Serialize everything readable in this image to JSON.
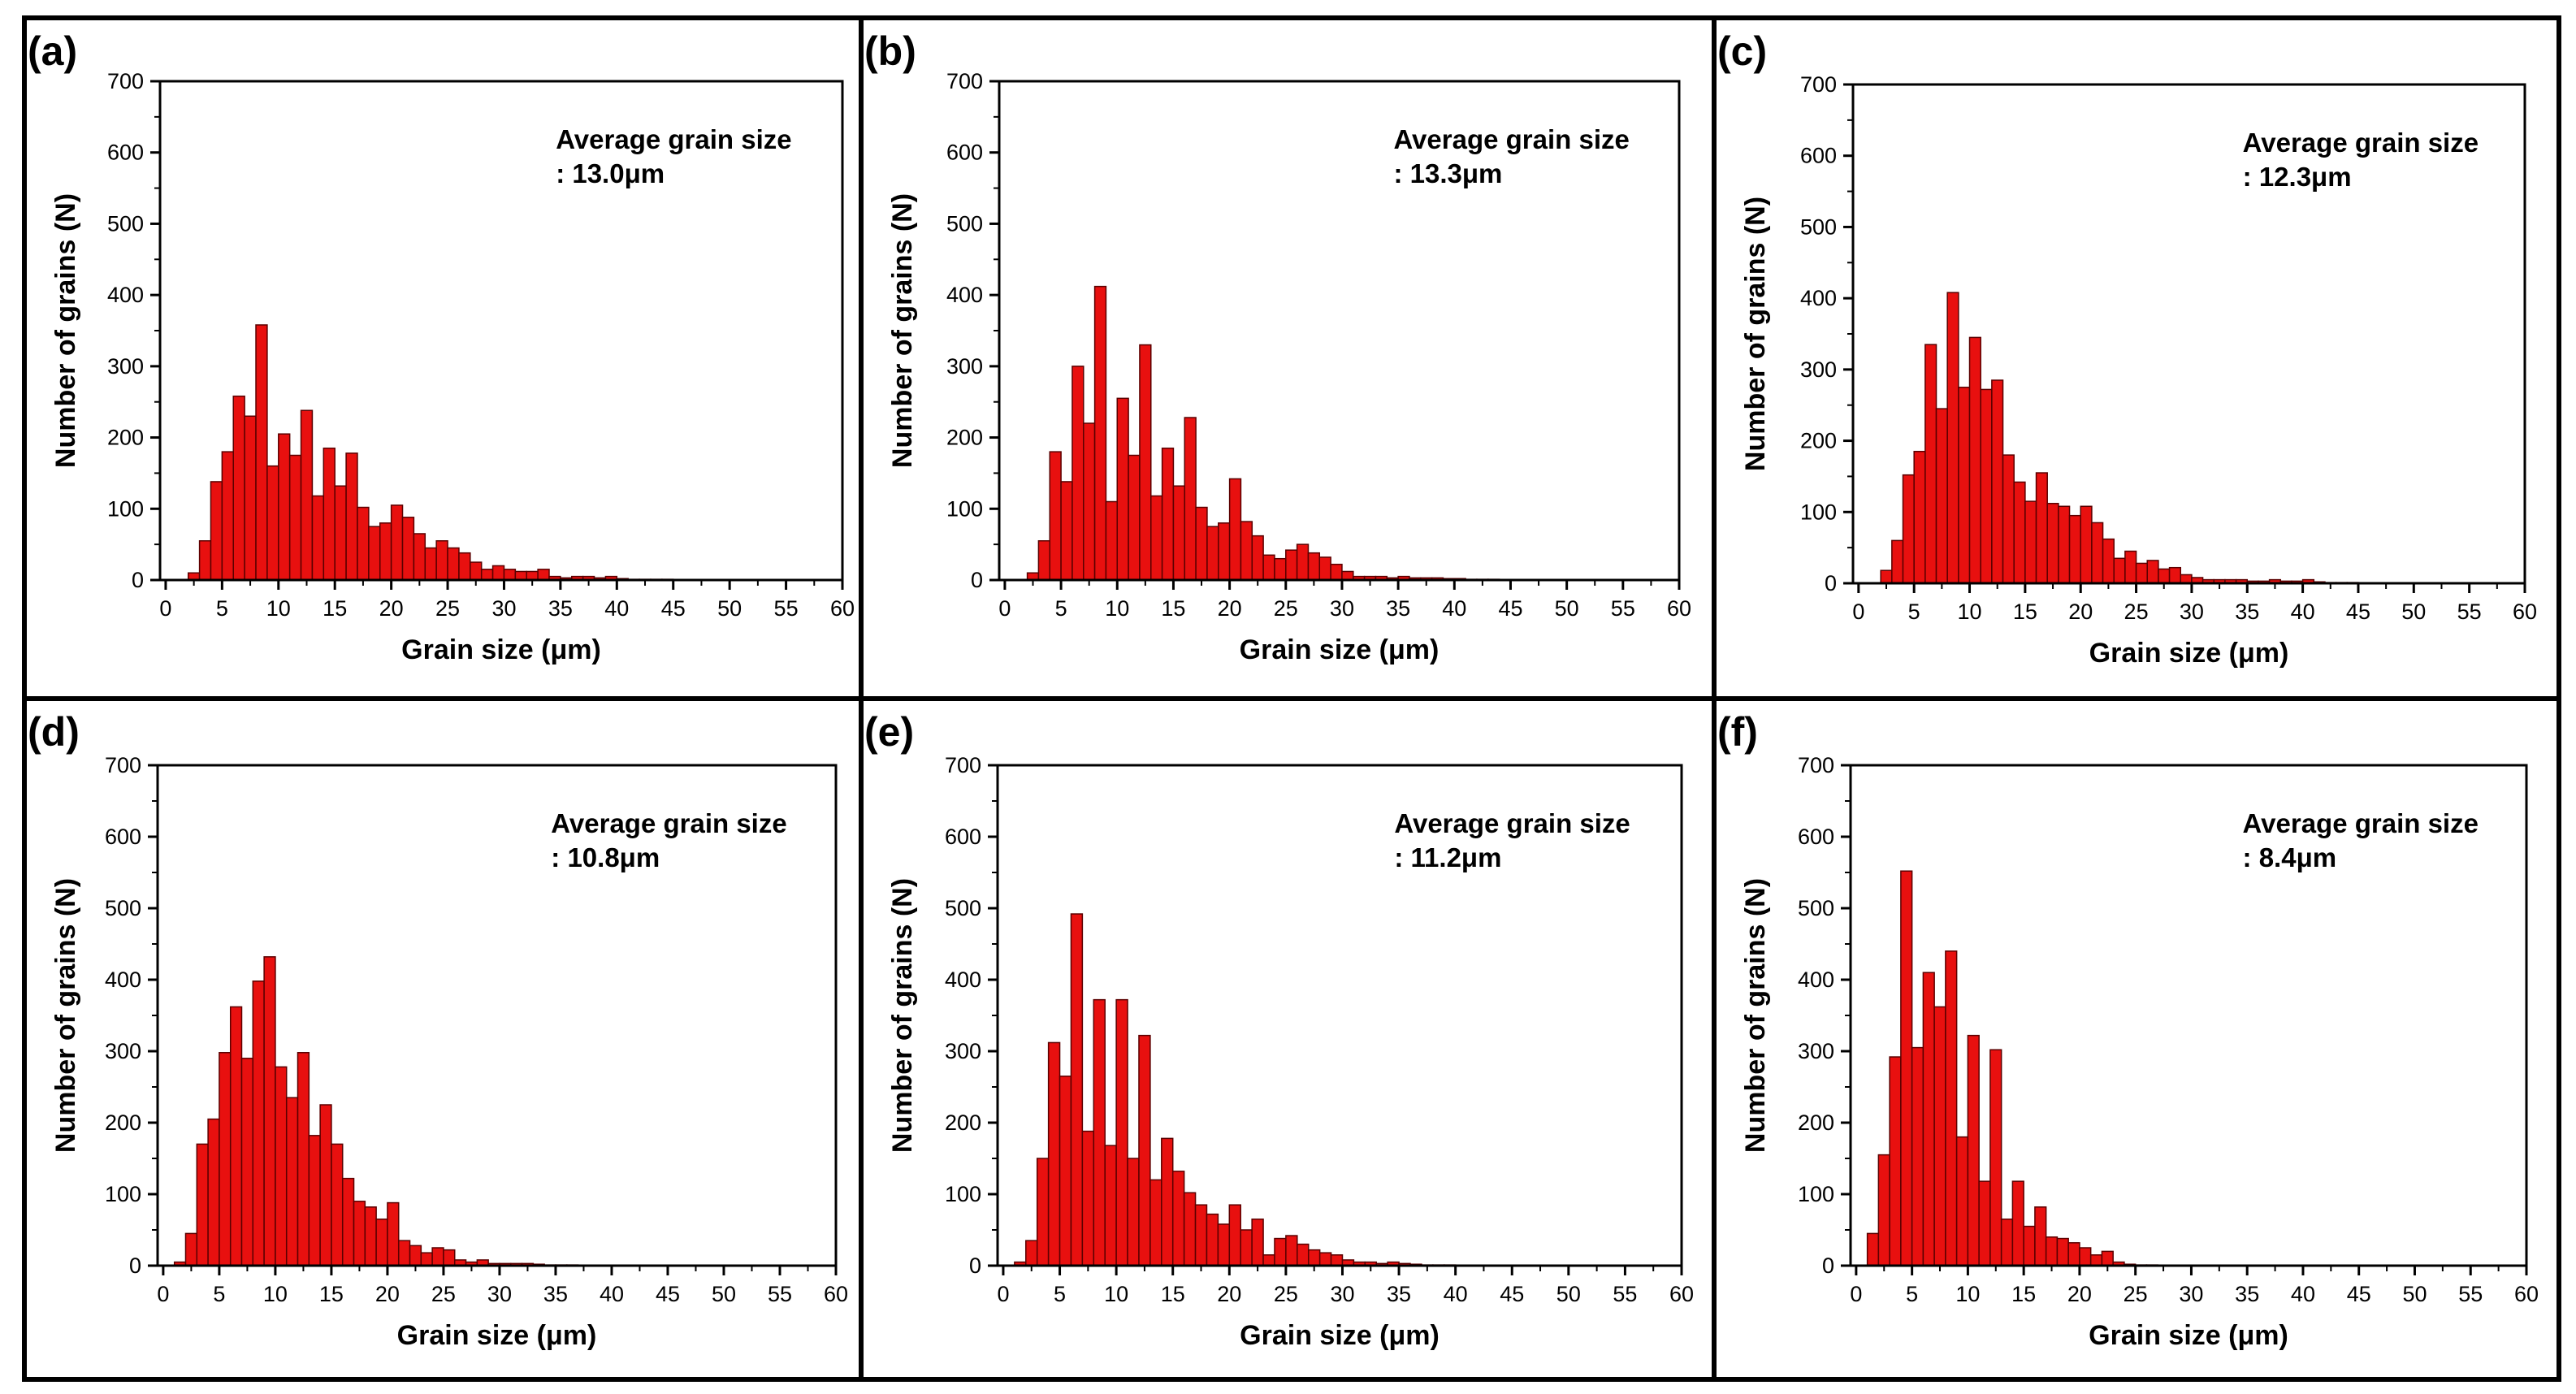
{
  "colors": {
    "bar_fill": "#e8100f",
    "bar_stroke": "#5a0000",
    "axis": "#000000",
    "frame": "#000000"
  },
  "chart_data": [
    {
      "type": "bar",
      "label": "(a)",
      "xlabel": "Grain size (μm)",
      "ylabel": "Number of grains (N)",
      "xlim": [
        -0.5,
        60
      ],
      "ylim": [
        0,
        700
      ],
      "xticks": [
        0,
        5,
        10,
        15,
        20,
        25,
        30,
        35,
        40,
        45,
        50,
        55,
        60
      ],
      "yticks": [
        0,
        100,
        200,
        300,
        400,
        500,
        600,
        700
      ],
      "annotation": [
        "Average grain size",
        ": 13.0μm"
      ],
      "bin_start": 2,
      "bin_width": 1,
      "values": [
        10,
        55,
        138,
        180,
        258,
        230,
        358,
        160,
        205,
        175,
        238,
        118,
        185,
        132,
        178,
        102,
        75,
        80,
        105,
        88,
        65,
        45,
        55,
        45,
        38,
        25,
        15,
        20,
        15,
        12,
        12,
        15,
        5,
        3,
        5,
        5,
        3,
        5,
        2,
        1,
        1,
        1,
        1,
        0,
        0,
        0,
        0,
        0,
        0,
        0,
        0,
        0,
        0,
        0,
        0,
        0,
        0,
        0
      ]
    },
    {
      "type": "bar",
      "label": "(b)",
      "xlabel": "Grain size (μm)",
      "ylabel": "Number of grains (N)",
      "xlim": [
        -0.5,
        60
      ],
      "ylim": [
        0,
        700
      ],
      "xticks": [
        0,
        5,
        10,
        15,
        20,
        25,
        30,
        35,
        40,
        45,
        50,
        55,
        60
      ],
      "yticks": [
        0,
        100,
        200,
        300,
        400,
        500,
        600,
        700
      ],
      "annotation": [
        "Average grain size",
        ": 13.3μm"
      ],
      "bin_start": 2,
      "bin_width": 1,
      "values": [
        10,
        55,
        180,
        138,
        300,
        220,
        412,
        110,
        255,
        175,
        330,
        118,
        185,
        132,
        228,
        102,
        75,
        80,
        142,
        82,
        62,
        35,
        30,
        42,
        50,
        38,
        32,
        22,
        12,
        5,
        5,
        5,
        3,
        5,
        3,
        3,
        3,
        2,
        2,
        1,
        1,
        1,
        0,
        0,
        0,
        0,
        0,
        0,
        0,
        0,
        0,
        0,
        0,
        0,
        0,
        0,
        0,
        0
      ]
    },
    {
      "type": "bar",
      "label": "(c)",
      "xlabel": "Grain size (μm)",
      "ylabel": "Number of grains (N)",
      "xlim": [
        -0.5,
        60
      ],
      "ylim": [
        0,
        700
      ],
      "xticks": [
        0,
        5,
        10,
        15,
        20,
        25,
        30,
        35,
        40,
        45,
        50,
        55,
        60
      ],
      "yticks": [
        0,
        100,
        200,
        300,
        400,
        500,
        600,
        700
      ],
      "annotation": [
        "Average grain size",
        ": 12.3μm"
      ],
      "bin_start": 2,
      "bin_width": 1,
      "values": [
        18,
        60,
        152,
        185,
        335,
        245,
        408,
        275,
        345,
        272,
        285,
        180,
        142,
        115,
        155,
        112,
        108,
        95,
        108,
        85,
        62,
        35,
        45,
        28,
        32,
        20,
        22,
        12,
        8,
        5,
        5,
        5,
        5,
        3,
        3,
        5,
        3,
        3,
        5,
        2,
        1,
        1,
        1,
        0,
        0,
        0,
        0,
        0,
        0,
        0,
        0,
        0,
        0,
        0,
        0,
        0,
        0,
        0
      ]
    },
    {
      "type": "bar",
      "label": "(d)",
      "xlabel": "Grain size (μm)",
      "ylabel": "Number of grains (N)",
      "xlim": [
        -0.5,
        60
      ],
      "ylim": [
        0,
        700
      ],
      "xticks": [
        0,
        5,
        10,
        15,
        20,
        25,
        30,
        35,
        40,
        45,
        50,
        55,
        60
      ],
      "yticks": [
        0,
        100,
        200,
        300,
        400,
        500,
        600,
        700
      ],
      "annotation": [
        "Average grain size",
        ": 10.8μm"
      ],
      "bin_start": 1,
      "bin_width": 1,
      "values": [
        5,
        45,
        170,
        205,
        298,
        362,
        290,
        398,
        432,
        278,
        235,
        298,
        182,
        225,
        170,
        122,
        90,
        82,
        65,
        88,
        35,
        28,
        18,
        25,
        22,
        8,
        5,
        8,
        3,
        3,
        3,
        3,
        2,
        1,
        1,
        1,
        0,
        0,
        0,
        0,
        0,
        0,
        0,
        0,
        0,
        0,
        0,
        0,
        0,
        0,
        0,
        0,
        0,
        0,
        0,
        0,
        0,
        0,
        0
      ]
    },
    {
      "type": "bar",
      "label": "(e)",
      "xlabel": "Grain size (μm)",
      "ylabel": "Number of grains (N)",
      "xlim": [
        -0.5,
        60
      ],
      "ylim": [
        0,
        700
      ],
      "xticks": [
        0,
        5,
        10,
        15,
        20,
        25,
        30,
        35,
        40,
        45,
        50,
        55,
        60
      ],
      "yticks": [
        0,
        100,
        200,
        300,
        400,
        500,
        600,
        700
      ],
      "annotation": [
        "Average grain size",
        ": 11.2μm"
      ],
      "bin_start": 1,
      "bin_width": 1,
      "values": [
        5,
        35,
        150,
        312,
        265,
        492,
        188,
        372,
        168,
        372,
        150,
        322,
        120,
        178,
        132,
        102,
        85,
        72,
        58,
        85,
        50,
        65,
        15,
        38,
        42,
        30,
        22,
        18,
        15,
        8,
        5,
        5,
        3,
        5,
        3,
        2,
        1,
        1,
        1,
        0,
        0,
        0,
        0,
        0,
        0,
        0,
        0,
        0,
        0,
        0,
        0,
        0,
        0,
        0,
        0,
        0,
        0,
        0,
        0
      ]
    },
    {
      "type": "bar",
      "label": "(f)",
      "xlabel": "Grain size (μm)",
      "ylabel": "Number of grains (N)",
      "xlim": [
        -0.5,
        60
      ],
      "ylim": [
        0,
        700
      ],
      "xticks": [
        0,
        5,
        10,
        15,
        20,
        25,
        30,
        35,
        40,
        45,
        50,
        55,
        60
      ],
      "yticks": [
        0,
        100,
        200,
        300,
        400,
        500,
        600,
        700
      ],
      "annotation": [
        "Average grain size",
        ": 8.4μm"
      ],
      "bin_start": 1,
      "bin_width": 1,
      "values": [
        45,
        155,
        292,
        552,
        305,
        410,
        362,
        440,
        180,
        322,
        118,
        302,
        65,
        118,
        55,
        82,
        40,
        38,
        32,
        25,
        15,
        20,
        5,
        2,
        1,
        1,
        0,
        0,
        0,
        0,
        0,
        0,
        0,
        0,
        0,
        0,
        0,
        0,
        0,
        0,
        0,
        0,
        0,
        0,
        0,
        0,
        0,
        0,
        0,
        0,
        0,
        0,
        0,
        0,
        0,
        0,
        0,
        0,
        0
      ]
    }
  ]
}
